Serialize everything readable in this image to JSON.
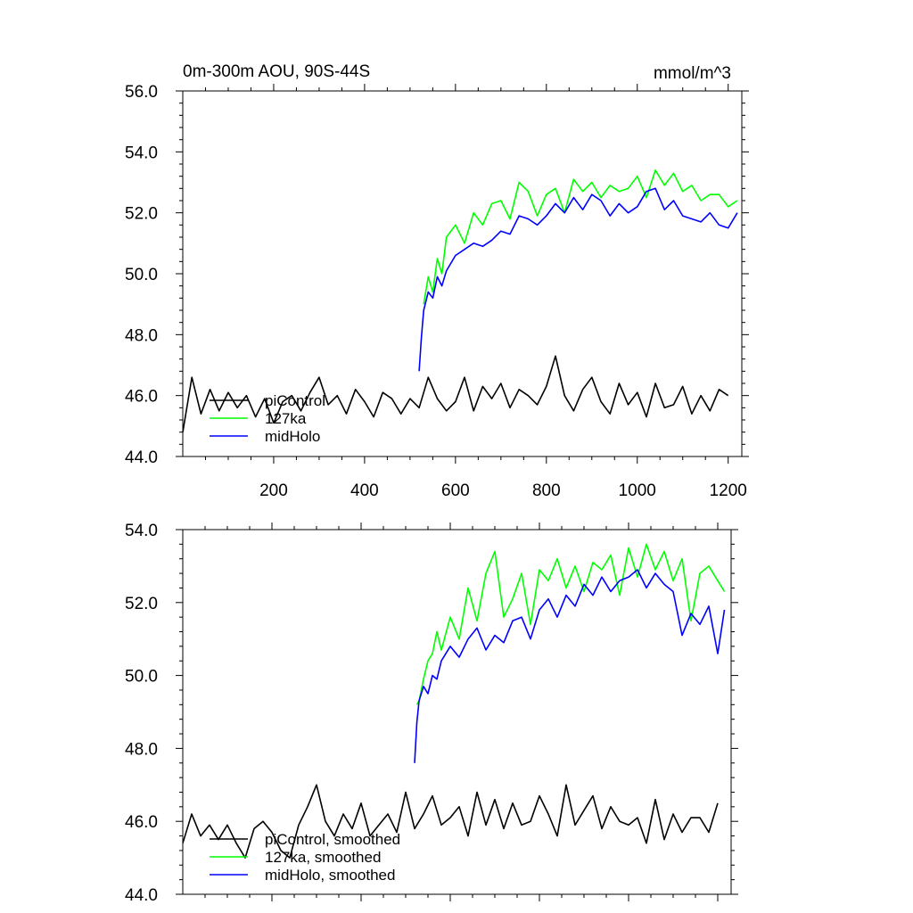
{
  "figure": {
    "title_left": "0m-300m AOU, 90S-44S",
    "title_right": "mmol/m^3"
  },
  "chart_data": [
    {
      "type": "line",
      "panel": "top",
      "xlim": [
        0,
        1230
      ],
      "ylim": [
        44,
        56
      ],
      "x_ticks": [
        200,
        400,
        600,
        800,
        1000,
        1200
      ],
      "x_tick_labels": [
        "200",
        "400",
        "600",
        "800",
        "1000",
        "1200"
      ],
      "y_ticks": [
        44,
        46,
        48,
        50,
        52,
        54,
        56
      ],
      "y_tick_labels": [
        "44.0",
        "46.0",
        "48.0",
        "50.0",
        "52.0",
        "54.0",
        "56.0"
      ],
      "legend_position": "bottom-left",
      "series": [
        {
          "name": "piControl",
          "color": "#000000",
          "x": [
            0,
            20,
            40,
            60,
            80,
            100,
            120,
            140,
            160,
            180,
            200,
            220,
            240,
            260,
            280,
            300,
            320,
            340,
            360,
            380,
            400,
            420,
            440,
            460,
            480,
            500,
            520,
            540,
            560,
            580,
            600,
            620,
            640,
            660,
            680,
            700,
            720,
            740,
            760,
            780,
            800,
            820,
            840,
            860,
            880,
            900,
            920,
            940,
            960,
            980,
            1000,
            1020,
            1040,
            1060,
            1080,
            1100,
            1120,
            1140,
            1160,
            1180,
            1200
          ],
          "y": [
            44.8,
            46.6,
            45.4,
            46.2,
            45.5,
            46.1,
            45.6,
            46.0,
            45.3,
            45.9,
            45.1,
            45.8,
            46.0,
            45.5,
            46.1,
            46.6,
            45.7,
            46.0,
            45.4,
            46.2,
            45.8,
            45.3,
            46.1,
            45.9,
            45.4,
            45.9,
            45.6,
            46.6,
            45.9,
            45.5,
            45.8,
            46.6,
            45.5,
            46.3,
            45.9,
            46.4,
            45.6,
            46.2,
            46.0,
            45.7,
            46.3,
            47.3,
            46.0,
            45.5,
            46.2,
            46.6,
            45.8,
            45.4,
            46.4,
            45.7,
            46.1,
            45.3,
            46.4,
            45.6,
            45.7,
            46.3,
            45.4,
            46.0,
            45.5,
            46.2,
            46.0
          ]
        },
        {
          "name": "127ka",
          "color": "#00ff00",
          "x": [
            530,
            540,
            550,
            560,
            570,
            580,
            600,
            620,
            640,
            660,
            680,
            700,
            720,
            740,
            760,
            780,
            800,
            820,
            840,
            860,
            880,
            900,
            920,
            940,
            960,
            980,
            1000,
            1020,
            1040,
            1060,
            1080,
            1100,
            1120,
            1140,
            1160,
            1180,
            1200,
            1220
          ],
          "y": [
            49.0,
            49.9,
            49.4,
            50.5,
            50.0,
            51.2,
            51.6,
            51.0,
            52.0,
            51.6,
            52.3,
            52.4,
            51.8,
            53.0,
            52.7,
            51.9,
            52.6,
            52.8,
            52.0,
            53.1,
            52.7,
            53.0,
            52.5,
            52.9,
            52.7,
            52.8,
            53.2,
            52.5,
            53.4,
            52.9,
            53.3,
            52.7,
            52.9,
            52.4,
            52.6,
            52.6,
            52.2,
            52.4
          ]
        },
        {
          "name": "midHolo",
          "color": "#0000ff",
          "x": [
            520,
            525,
            530,
            540,
            550,
            560,
            570,
            580,
            600,
            620,
            640,
            660,
            680,
            700,
            720,
            740,
            760,
            780,
            800,
            820,
            840,
            860,
            880,
            900,
            920,
            940,
            960,
            980,
            1000,
            1020,
            1040,
            1060,
            1080,
            1100,
            1120,
            1140,
            1160,
            1180,
            1200,
            1220
          ],
          "y": [
            46.8,
            47.9,
            48.8,
            49.4,
            49.2,
            49.9,
            49.6,
            50.1,
            50.6,
            50.8,
            51.0,
            50.9,
            51.1,
            51.4,
            51.3,
            51.9,
            51.8,
            51.6,
            51.9,
            52.3,
            52.0,
            52.5,
            52.1,
            52.6,
            52.4,
            51.9,
            52.3,
            52.0,
            52.2,
            52.7,
            52.8,
            52.1,
            52.4,
            51.9,
            51.8,
            51.7,
            52.0,
            51.6,
            51.5,
            52.0
          ]
        }
      ]
    },
    {
      "type": "line",
      "panel": "bottom",
      "xlim": [
        0,
        1230
      ],
      "ylim": [
        44,
        54
      ],
      "x_ticks": [
        200,
        400,
        600,
        800,
        1000,
        1200
      ],
      "y_ticks": [
        44,
        46,
        48,
        50,
        52,
        54
      ],
      "y_tick_labels": [
        "44.0",
        "46.0",
        "48.0",
        "50.0",
        "52.0",
        "54.0"
      ],
      "legend_position": "bottom-left",
      "series": [
        {
          "name": "piControl, smoothed",
          "color": "#000000",
          "x": [
            0,
            20,
            40,
            60,
            80,
            100,
            120,
            140,
            160,
            180,
            200,
            220,
            240,
            260,
            280,
            300,
            320,
            340,
            360,
            380,
            400,
            420,
            440,
            460,
            480,
            500,
            520,
            540,
            560,
            580,
            600,
            620,
            640,
            660,
            680,
            700,
            720,
            740,
            760,
            780,
            800,
            820,
            840,
            860,
            880,
            900,
            920,
            940,
            960,
            980,
            1000,
            1020,
            1040,
            1060,
            1080,
            1100,
            1120,
            1140,
            1160,
            1180,
            1200
          ],
          "y": [
            45.4,
            46.2,
            45.6,
            45.9,
            45.5,
            45.9,
            45.4,
            45.0,
            45.8,
            46.0,
            45.7,
            45.2,
            45.0,
            45.9,
            46.4,
            47.0,
            46.0,
            45.6,
            46.2,
            45.8,
            46.5,
            45.6,
            45.9,
            46.2,
            45.7,
            46.8,
            45.8,
            46.2,
            46.7,
            45.9,
            46.1,
            46.4,
            45.6,
            46.8,
            45.9,
            46.6,
            45.8,
            46.5,
            45.9,
            46.0,
            46.7,
            46.2,
            45.6,
            47.0,
            45.9,
            46.3,
            46.7,
            45.8,
            46.4,
            46.0,
            45.9,
            46.1,
            45.4,
            46.6,
            45.5,
            46.2,
            45.7,
            46.1,
            46.1,
            45.7,
            46.5
          ]
        },
        {
          "name": "127ka, smoothed",
          "color": "#00ff00",
          "x": [
            525,
            530,
            540,
            550,
            560,
            570,
            580,
            600,
            620,
            640,
            660,
            680,
            700,
            720,
            740,
            760,
            780,
            800,
            820,
            840,
            860,
            880,
            900,
            920,
            940,
            960,
            980,
            1000,
            1020,
            1040,
            1060,
            1080,
            1100,
            1120,
            1140,
            1160,
            1180,
            1200,
            1215
          ],
          "y": [
            49.2,
            49.3,
            49.9,
            50.4,
            50.6,
            51.2,
            50.7,
            51.6,
            51.0,
            52.4,
            51.5,
            52.8,
            53.4,
            51.6,
            52.1,
            52.8,
            51.4,
            52.9,
            52.6,
            53.2,
            52.4,
            53.0,
            52.3,
            53.1,
            52.9,
            53.3,
            52.2,
            53.5,
            52.7,
            53.6,
            52.9,
            53.4,
            52.6,
            53.2,
            51.5,
            52.8,
            53.0,
            52.6,
            52.3
          ]
        },
        {
          "name": "midHolo, smoothed",
          "color": "#0000ff",
          "x": [
            520,
            525,
            530,
            540,
            550,
            560,
            570,
            580,
            600,
            620,
            640,
            660,
            680,
            700,
            720,
            740,
            760,
            780,
            800,
            820,
            840,
            860,
            880,
            900,
            920,
            940,
            960,
            980,
            1000,
            1020,
            1040,
            1060,
            1080,
            1100,
            1120,
            1140,
            1160,
            1180,
            1200,
            1215
          ],
          "y": [
            47.6,
            48.7,
            49.3,
            49.7,
            49.5,
            50.0,
            49.9,
            50.4,
            50.8,
            50.5,
            51.0,
            51.3,
            50.7,
            51.1,
            50.9,
            51.5,
            51.6,
            51.0,
            51.8,
            52.1,
            51.6,
            52.2,
            51.9,
            52.5,
            52.2,
            52.7,
            52.3,
            52.6,
            52.7,
            52.9,
            52.4,
            52.8,
            52.5,
            52.3,
            51.1,
            51.7,
            51.4,
            51.9,
            50.6,
            51.8
          ]
        }
      ]
    }
  ]
}
